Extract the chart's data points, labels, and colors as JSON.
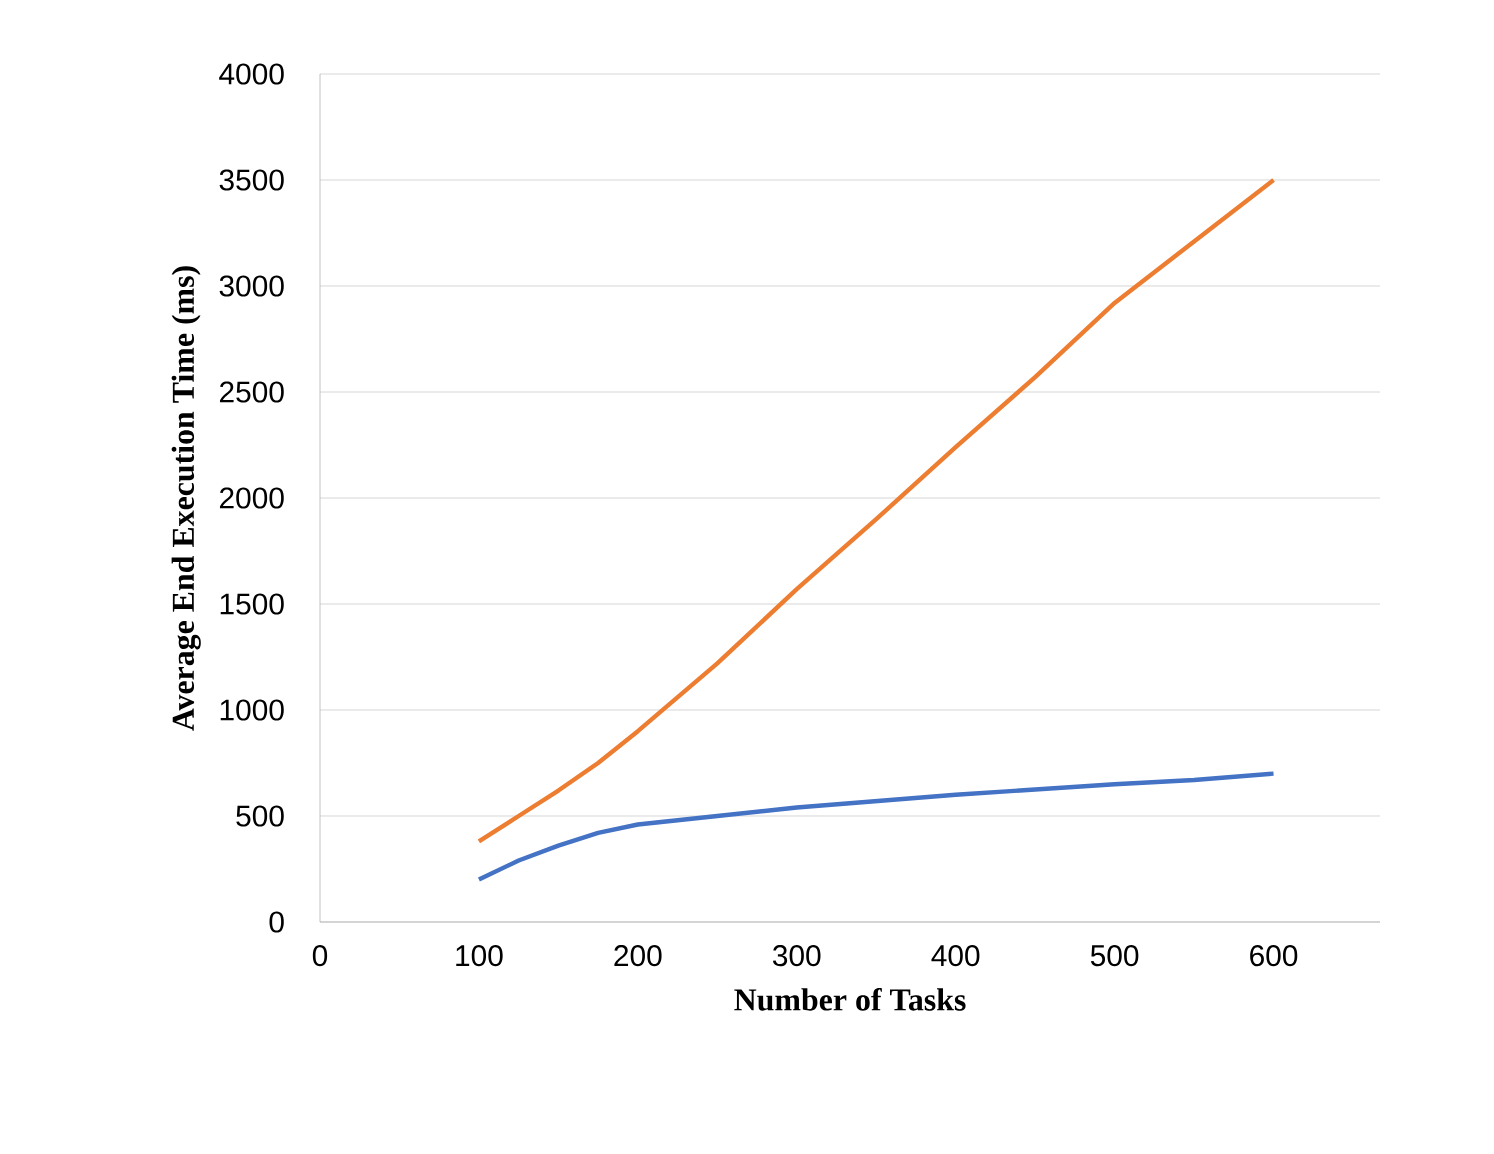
{
  "chart_data": {
    "type": "line",
    "xlabel": "Number of Tasks",
    "ylabel": "Average End Execution Time (ms)",
    "xlim": [
      0,
      667
    ],
    "xticks": [
      0,
      100,
      200,
      300,
      400,
      500,
      600
    ],
    "ylim": [
      0,
      4000
    ],
    "yticks": [
      0,
      500,
      1000,
      1500,
      2000,
      2500,
      3000,
      3500,
      4000
    ],
    "grid": "y",
    "marker": "none",
    "line_style": "solid",
    "series": [
      {
        "color": "#ed7d31",
        "x": [
          100,
          125,
          150,
          175,
          200,
          250,
          300,
          350,
          400,
          450,
          500,
          550,
          600
        ],
        "values": [
          380,
          500,
          620,
          750,
          900,
          1220,
          1570,
          1900,
          2240,
          2570,
          2920,
          3210,
          3500
        ]
      },
      {
        "color": "#4472c4",
        "x": [
          100,
          125,
          150,
          175,
          200,
          225,
          250,
          300,
          350,
          400,
          450,
          500,
          550,
          600
        ],
        "values": [
          200,
          290,
          360,
          420,
          460,
          480,
          500,
          540,
          570,
          600,
          625,
          650,
          670,
          700
        ]
      }
    ]
  }
}
